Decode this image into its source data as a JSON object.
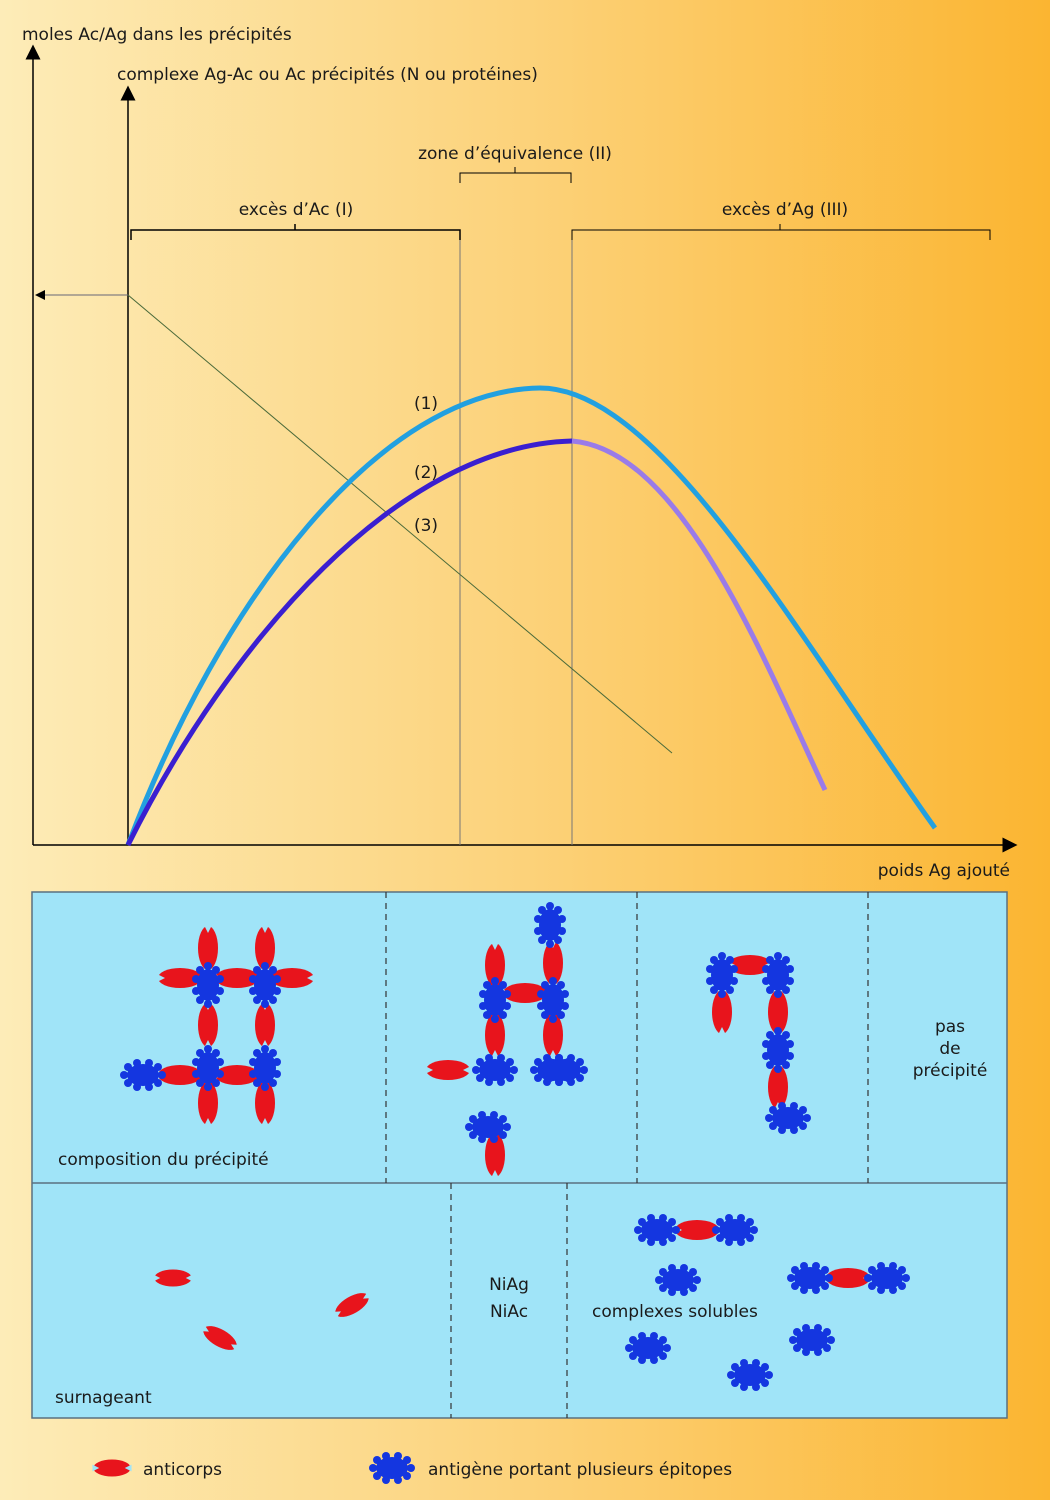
{
  "axes": {
    "y_outer_label": "moles Ac/Ag dans les précipités",
    "y_inner_label": "complexe Ag-Ac ou Ac précipités (N ou protéines)",
    "x_label": "poids Ag ajouté"
  },
  "zones": [
    "excès d’Ac (I)",
    "zone d’équivalence (II)",
    "excès d’Ag (III)"
  ],
  "curve_labels": [
    "(1)",
    "(2)",
    "(3)"
  ],
  "panels": {
    "precipitate": {
      "caption": "composition du précipité",
      "no_precipitate": [
        "pas",
        "de",
        "précipité"
      ]
    },
    "supernatant": {
      "caption": "surnageant",
      "free": [
        "NiAg",
        "NiAc"
      ],
      "soluble": "complexes solubles"
    }
  },
  "legend": [
    "anticorps",
    "antigène portant plusieurs épitopes"
  ]
}
